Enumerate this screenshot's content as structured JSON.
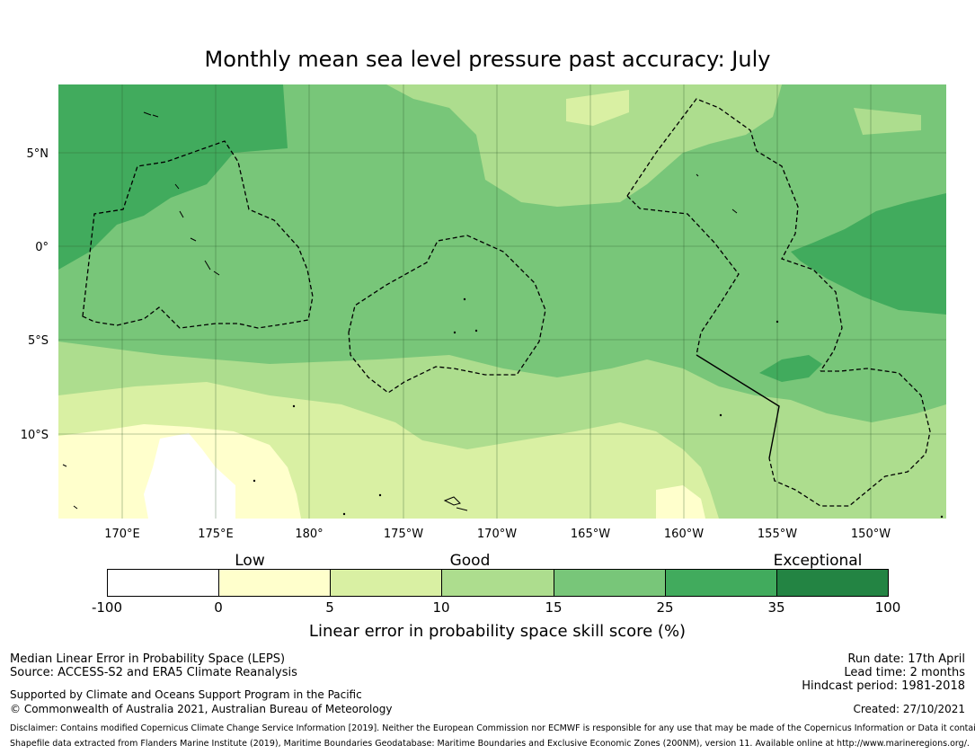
{
  "title": "Monthly mean sea level pressure past accuracy: July",
  "map": {
    "lat_labels": [
      "5°N",
      "0°",
      "5°S",
      "10°S"
    ],
    "lon_labels": [
      "170°E",
      "175°E",
      "180°",
      "175°W",
      "170°W",
      "165°W",
      "160°W",
      "155°W",
      "150°W"
    ],
    "colors": {
      "lt0": "#ffffff",
      "c0_5": "#ffffcc",
      "c5_10": "#d9f0a3",
      "c10_15": "#addd8e",
      "c15_25": "#78c679",
      "c25_35": "#41ab5d",
      "c35_100": "#238443"
    }
  },
  "colorbar": {
    "categories": [
      "Low",
      "Good",
      "Exceptional"
    ],
    "ticks": [
      "-100",
      "0",
      "5",
      "10",
      "15",
      "25",
      "35",
      "100"
    ],
    "label": "Linear error in probability space skill score (%)"
  },
  "footer": {
    "left_line1": "Median Linear Error in Probability Space (LEPS)",
    "left_line2": "Source: ACCESS-S2 and ERA5 Climate Reanalysis",
    "left_line3": "Supported by Climate and Oceans Support Program in the Pacific",
    "left_line4": "© Commonwealth of Australia 2021, Australian Bureau of Meteorology",
    "right_line1": "Run date: 17th April",
    "right_line2": "Lead time: 2 months",
    "right_line3": "Hindcast period: 1981-2018",
    "right_line4": "Created: 27/10/2021",
    "disclaimer1": "Disclaimer: Contains modified Copernicus Climate Change Service Information [2019]. Neither the European Commission nor ECMWF is responsible for any use that may be made of the Copernicus Information or Data it contains.",
    "disclaimer2": "Shapefile data extracted from Flanders Marine Institute (2019), Maritime Boundaries Geodatabase: Maritime Boundaries and Exclusive Economic Zones (200NM), version 11. Available online at http://www.marineregions.org/."
  }
}
